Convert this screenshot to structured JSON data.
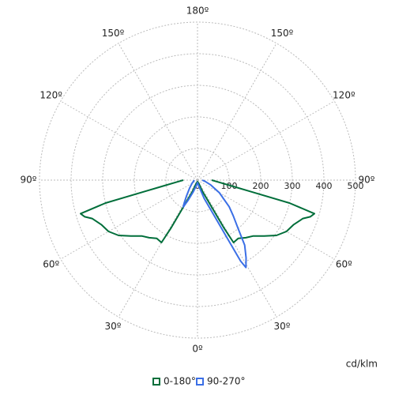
{
  "chart_data": {
    "type": "polar",
    "unit_label": "cd/klm",
    "rlim": [
      0,
      500
    ],
    "rticks": [
      0,
      100,
      200,
      300,
      400,
      500
    ],
    "angle_ticks": [
      {
        "value": 0,
        "label": "0º"
      },
      {
        "value": 30,
        "label": "30º"
      },
      {
        "value": 60,
        "label": "60º"
      },
      {
        "value": 90,
        "label": "90º"
      },
      {
        "value": 120,
        "label": "120º"
      },
      {
        "value": 150,
        "label": "150º"
      },
      {
        "value": 180,
        "label": "180º"
      },
      {
        "value": -30,
        "label": "30º"
      },
      {
        "value": -60,
        "label": "60º"
      },
      {
        "value": -90,
        "label": "90º"
      },
      {
        "value": -120,
        "label": "120º"
      },
      {
        "value": -150,
        "label": "150º"
      }
    ],
    "grid": true,
    "series": [
      {
        "name": "0-180°",
        "color": "#006e3a",
        "x": [
          -90,
          -85,
          -80,
          -78,
          -76,
          -74,
          -72,
          -70,
          -65,
          -60,
          -55,
          -50,
          -45,
          -40,
          -35,
          -30,
          -29,
          -28,
          -26,
          -24,
          -20,
          -10,
          0,
          10,
          20,
          24,
          26,
          28,
          29,
          30,
          35,
          40,
          45,
          50,
          55,
          60,
          65,
          70,
          72,
          74,
          76,
          78,
          80,
          85,
          90
        ],
        "values": [
          45,
          65,
          115,
          165,
          300,
          385,
          375,
          355,
          335,
          325,
          305,
          275,
          250,
          238,
          225,
          228,
          175,
          103,
          58,
          40,
          10,
          6,
          5,
          6,
          10,
          40,
          58,
          103,
          175,
          228,
          225,
          238,
          250,
          275,
          305,
          325,
          335,
          355,
          375,
          385,
          300,
          165,
          115,
          65,
          45
        ]
      },
      {
        "name": "90-270°",
        "color": "#3b6fe6",
        "x": [
          -90,
          -60,
          -45,
          -35,
          -30,
          -28,
          -25,
          -20,
          -10,
          0,
          10,
          20,
          25,
          27,
          28,
          29,
          32,
          36,
          40,
          45,
          50,
          60,
          70,
          80,
          90
        ],
        "values": [
          10,
          20,
          35,
          60,
          85,
          96,
          70,
          40,
          15,
          8,
          15,
          62,
          121,
          198,
          290,
          316,
          290,
          254,
          200,
          160,
          131,
          80,
          45,
          25,
          15
        ]
      }
    ]
  }
}
